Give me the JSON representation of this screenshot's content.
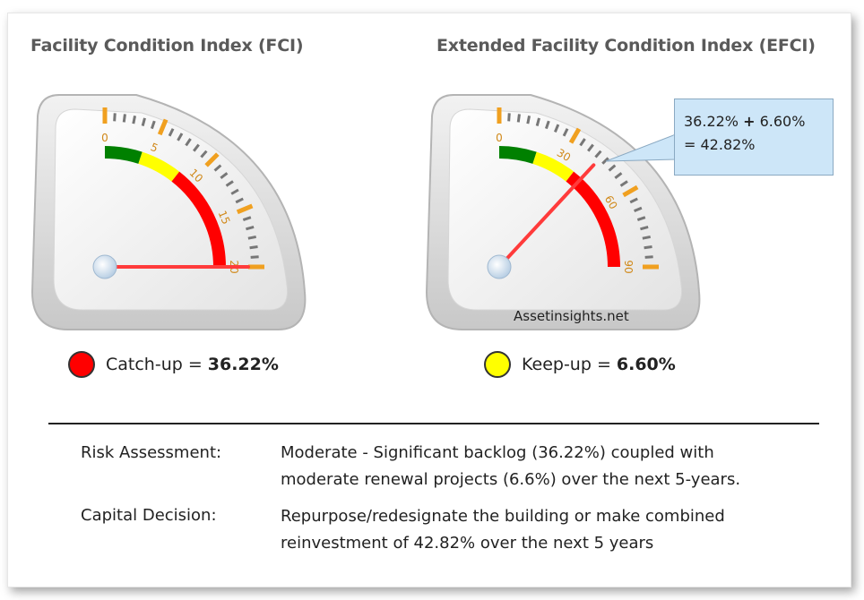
{
  "titles": {
    "fci": "Facility Condition Index (FCI)",
    "efci": "Extended Facility Condition Index (EFCI)"
  },
  "gauges": {
    "fci": {
      "ticks": [
        "0",
        "5",
        "10",
        "15",
        "20"
      ],
      "scale_max": 20,
      "needle_value": 20,
      "band_colors": [
        "#008000",
        "#ffff00",
        "#ff0000"
      ]
    },
    "efci": {
      "ticks": [
        "0",
        "30",
        "60",
        "90"
      ],
      "scale_max": 90,
      "needle_value": 42.82,
      "band_colors": [
        "#008000",
        "#ffff00",
        "#ff0000"
      ]
    }
  },
  "callout": {
    "line1_a": "36.22%",
    "line1_op": "+",
    "line1_b": "6.60%",
    "line2": "= 42.82%"
  },
  "watermark": "Assetinsights.net",
  "legend": {
    "catchup": {
      "label": "Catch-up =",
      "value": "36.22%",
      "color": "#ff0000"
    },
    "keepup": {
      "label": "Keep-up =",
      "value": "6.60%",
      "color": "#ffff00"
    }
  },
  "assessment": {
    "risk_label": "Risk Assessment:",
    "risk_line1": "Moderate - Significant backlog (36.22%) coupled with",
    "risk_line2": "moderate renewal projects (6.6%) over the next 5-years.",
    "capital_label": "Capital Decision:",
    "capital_line1": "Repurpose/redesignate the building or make combined",
    "capital_line2": "reinvestment of 42.82% over the next 5 years"
  }
}
